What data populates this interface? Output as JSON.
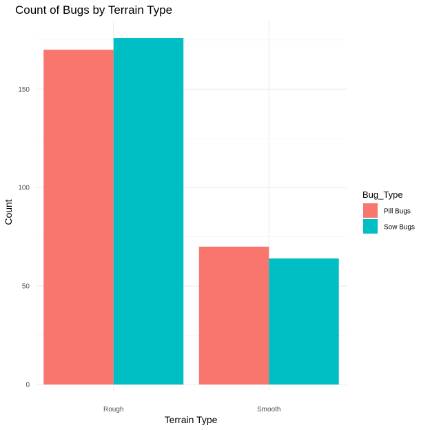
{
  "chart_data": {
    "type": "bar",
    "title": "Count of Bugs by Terrain Type",
    "xlabel": "Terrain Type",
    "ylabel": "Count",
    "categories": [
      "Rough",
      "Smooth"
    ],
    "series": [
      {
        "name": "Pill Bugs",
        "values": [
          170,
          70
        ],
        "color": "#F8766D"
      },
      {
        "name": "Sow Bugs",
        "values": [
          176,
          64
        ],
        "color": "#00BFC4"
      }
    ],
    "ylim": [
      0,
      185
    ],
    "yticks": [
      0,
      50,
      100,
      150
    ],
    "grid": true,
    "legend": {
      "title": "Bug_Type",
      "placement": "right"
    }
  }
}
